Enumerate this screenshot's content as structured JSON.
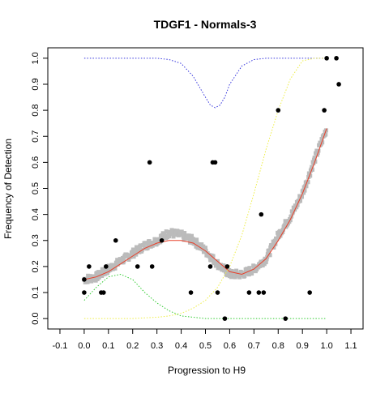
{
  "chart_data": {
    "type": "scatter",
    "title": "TDGF1 - Normals-3",
    "xlabel": "Progression to H9",
    "ylabel": "Frequency of Detection",
    "xlim": [
      -0.15,
      1.15
    ],
    "ylim": [
      -0.04,
      1.04
    ],
    "xticks": [
      "-0.1",
      "0.0",
      "0.1",
      "0.2",
      "0.3",
      "0.4",
      "0.5",
      "0.6",
      "0.7",
      "0.8",
      "0.9",
      "1.0",
      "1.1"
    ],
    "yticks": [
      "0.0",
      "0.1",
      "0.2",
      "0.3",
      "0.4",
      "0.5",
      "0.6",
      "0.7",
      "0.8",
      "0.9",
      "1.0"
    ],
    "grid": false,
    "legend": "none",
    "points": [
      {
        "x": 0.0,
        "y": 0.1
      },
      {
        "x": 0.0,
        "y": 0.15
      },
      {
        "x": 0.02,
        "y": 0.2
      },
      {
        "x": 0.07,
        "y": 0.1
      },
      {
        "x": 0.08,
        "y": 0.1
      },
      {
        "x": 0.09,
        "y": 0.2
      },
      {
        "x": 0.13,
        "y": 0.3
      },
      {
        "x": 0.22,
        "y": 0.2
      },
      {
        "x": 0.27,
        "y": 0.6
      },
      {
        "x": 0.28,
        "y": 0.2
      },
      {
        "x": 0.32,
        "y": 0.3
      },
      {
        "x": 0.44,
        "y": 0.1
      },
      {
        "x": 0.52,
        "y": 0.2
      },
      {
        "x": 0.53,
        "y": 0.6
      },
      {
        "x": 0.54,
        "y": 0.6
      },
      {
        "x": 0.55,
        "y": 0.1
      },
      {
        "x": 0.58,
        "y": 0.0
      },
      {
        "x": 0.59,
        "y": 0.2
      },
      {
        "x": 0.68,
        "y": 0.1
      },
      {
        "x": 0.72,
        "y": 0.1
      },
      {
        "x": 0.73,
        "y": 0.4
      },
      {
        "x": 0.74,
        "y": 0.1
      },
      {
        "x": 0.8,
        "y": 0.8
      },
      {
        "x": 0.83,
        "y": 0.0
      },
      {
        "x": 0.93,
        "y": 0.1
      },
      {
        "x": 0.99,
        "y": 0.8
      },
      {
        "x": 1.0,
        "y": 1.0
      },
      {
        "x": 1.04,
        "y": 1.0
      },
      {
        "x": 1.05,
        "y": 0.9
      }
    ],
    "series": [
      {
        "style": "gray-thick-noisy",
        "color": "#bbbbbb",
        "x": [
          0.0,
          0.05,
          0.1,
          0.15,
          0.2,
          0.25,
          0.3,
          0.35,
          0.4,
          0.45,
          0.5,
          0.55,
          0.6,
          0.65,
          0.7,
          0.75,
          0.8,
          0.85,
          0.9,
          0.95,
          1.0
        ],
        "y": [
          0.15,
          0.16,
          0.19,
          0.22,
          0.25,
          0.28,
          0.3,
          0.33,
          0.32,
          0.3,
          0.26,
          0.21,
          0.17,
          0.17,
          0.19,
          0.23,
          0.32,
          0.39,
          0.48,
          0.61,
          0.73
        ]
      },
      {
        "style": "red-solid",
        "color": "#e8402a",
        "x": [
          0.0,
          0.05,
          0.1,
          0.15,
          0.2,
          0.25,
          0.3,
          0.35,
          0.4,
          0.45,
          0.5,
          0.55,
          0.6,
          0.65,
          0.7,
          0.75,
          0.8,
          0.85,
          0.9,
          0.95,
          1.0
        ],
        "y": [
          0.15,
          0.16,
          0.18,
          0.21,
          0.24,
          0.27,
          0.29,
          0.3,
          0.3,
          0.29,
          0.26,
          0.22,
          0.18,
          0.17,
          0.19,
          0.23,
          0.3,
          0.38,
          0.48,
          0.6,
          0.73
        ]
      },
      {
        "style": "blue-dotted",
        "color": "#3333dd",
        "x": [
          0.0,
          0.1,
          0.2,
          0.3,
          0.35,
          0.4,
          0.45,
          0.5,
          0.52,
          0.54,
          0.56,
          0.58,
          0.6,
          0.65,
          0.7,
          0.75,
          0.8,
          0.9,
          1.0
        ],
        "y": [
          1.0,
          1.0,
          1.0,
          1.0,
          0.995,
          0.98,
          0.93,
          0.85,
          0.82,
          0.81,
          0.82,
          0.85,
          0.9,
          0.97,
          0.995,
          1.0,
          1.0,
          1.0,
          1.0
        ]
      },
      {
        "style": "yellow-dotted",
        "color": "#eeee44",
        "x": [
          0.0,
          0.1,
          0.2,
          0.3,
          0.35,
          0.4,
          0.45,
          0.5,
          0.55,
          0.6,
          0.65,
          0.7,
          0.75,
          0.8,
          0.85,
          0.9,
          0.95,
          1.0
        ],
        "y": [
          0.0,
          0.0,
          0.0,
          0.005,
          0.01,
          0.02,
          0.04,
          0.07,
          0.12,
          0.2,
          0.32,
          0.48,
          0.65,
          0.8,
          0.92,
          0.99,
          1.0,
          1.0
        ]
      },
      {
        "style": "green-dotted",
        "color": "#33cc33",
        "x": [
          0.0,
          0.05,
          0.1,
          0.15,
          0.2,
          0.25,
          0.3,
          0.35,
          0.4,
          0.45,
          0.5,
          0.6,
          0.7,
          0.8,
          0.9,
          1.0
        ],
        "y": [
          0.07,
          0.12,
          0.16,
          0.17,
          0.15,
          0.1,
          0.06,
          0.03,
          0.01,
          0.005,
          0.0,
          0.0,
          0.0,
          0.0,
          0.0,
          0.0
        ]
      }
    ]
  }
}
